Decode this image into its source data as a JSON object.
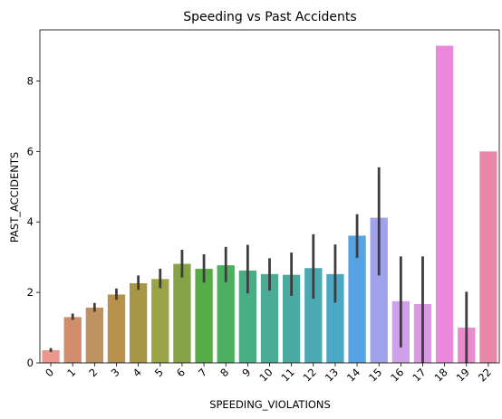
{
  "chart_data": {
    "type": "bar",
    "title": "Speeding vs Past Accidents",
    "xlabel": "SPEEDING_VIOLATIONS",
    "ylabel": "PAST_ACCIDENTS",
    "ylim": [
      0,
      9.45
    ],
    "yticks": [
      "0",
      "2",
      "4",
      "6",
      "8"
    ],
    "grid": false,
    "legend": "none",
    "categories": [
      "0",
      "1",
      "2",
      "3",
      "4",
      "5",
      "6",
      "7",
      "8",
      "9",
      "10",
      "11",
      "12",
      "13",
      "14",
      "15",
      "16",
      "17",
      "18",
      "19",
      "22"
    ],
    "values": [
      0.36,
      1.3,
      1.57,
      1.94,
      2.26,
      2.38,
      2.81,
      2.67,
      2.77,
      2.62,
      2.52,
      2.5,
      2.69,
      2.52,
      3.61,
      4.12,
      1.75,
      1.67,
      9.0,
      1.0,
      6.0
    ],
    "error_low": [
      0.31,
      1.22,
      1.45,
      1.79,
      2.07,
      2.12,
      2.42,
      2.28,
      2.29,
      1.97,
      2.05,
      1.9,
      1.82,
      1.71,
      2.98,
      2.48,
      0.44,
      0.0,
      null,
      0.0,
      null
    ],
    "error_high": [
      0.42,
      1.4,
      1.7,
      2.11,
      2.48,
      2.67,
      3.21,
      3.08,
      3.29,
      3.35,
      2.97,
      3.13,
      3.65,
      3.36,
      4.22,
      5.55,
      3.02,
      3.02,
      null,
      2.02,
      null
    ],
    "colors": [
      "#ec9790",
      "#d18c6c",
      "#c09262",
      "#b8924c",
      "#a69645",
      "#9ca347",
      "#86a446",
      "#58ac47",
      "#4aaf5f",
      "#48ad82",
      "#4aac94",
      "#4aaba3",
      "#4aa9b3",
      "#4ca8c7",
      "#55a3e3",
      "#a0a3ec",
      "#cda0ea",
      "#d99ae3",
      "#eb88de",
      "#eb8acd",
      "#e888aa"
    ]
  }
}
